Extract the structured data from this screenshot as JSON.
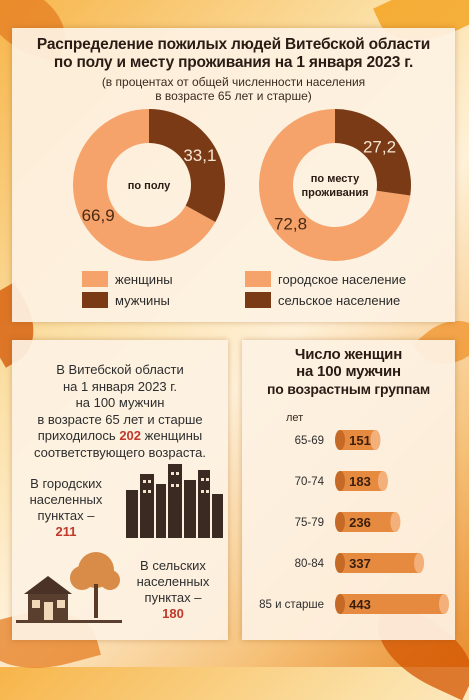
{
  "top": {
    "title_line1": "Распределение пожилых людей Витебской области",
    "title_line2": "по полу и месту проживания на 1 января 2023 г.",
    "subtitle_line1": "(в процентах от общей численности населения",
    "subtitle_line2": "в возрасте 65 лет и старше)"
  },
  "left_text": {
    "line1": "В Витебской области",
    "line2": "на 1 января 2023 г.",
    "line3": "на 100 мужчин",
    "line4": "в возрасте 65 лет и старше",
    "line5a": "приходилось",
    "line5num": "202",
    "line5b": "женщины",
    "line6": "соответствующего возраста.",
    "urban_line1": "В городских",
    "urban_line2": "населенных",
    "urban_line3": "пунктах –",
    "urban_value": "211",
    "rural_line1": "В сельских",
    "rural_line2": "населенных",
    "rural_line3": "пунктах –",
    "rural_value": "180"
  },
  "colors": {
    "light_orange": "#f5a36a",
    "dark_brown": "#7a3a16",
    "cylinder": "#e58a3e",
    "highlight_red": "#c0392b"
  },
  "chart_data": [
    {
      "type": "pie",
      "center_label": "по полу",
      "labels": [
        "женщины",
        "мужчины"
      ],
      "values": [
        66.9,
        33.1
      ],
      "value_labels": [
        "66,9",
        "33,1"
      ],
      "colors": [
        "#f5a36a",
        "#7a3a16"
      ]
    },
    {
      "type": "pie",
      "center_label_line1": "по месту",
      "center_label_line2": "проживания",
      "labels": [
        "городское население",
        "сельское население"
      ],
      "values": [
        72.8,
        27.2
      ],
      "value_labels": [
        "72,8",
        "27,2"
      ],
      "colors": [
        "#f5a36a",
        "#7a3a16"
      ]
    },
    {
      "type": "bar",
      "title_line1": "Число женщин",
      "title_line2": "на 100 мужчин",
      "title_line3": "по возрастным группам",
      "ylabel": "лет",
      "categories": [
        "65-69",
        "70-74",
        "75-79",
        "80-84",
        "85 и старше"
      ],
      "values": [
        151,
        183,
        236,
        337,
        443
      ]
    }
  ]
}
